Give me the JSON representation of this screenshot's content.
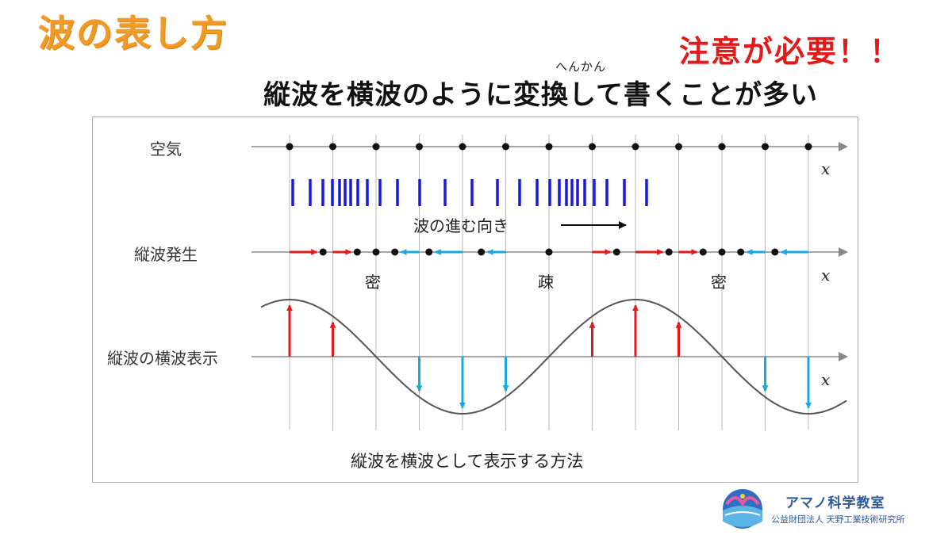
{
  "slide": {
    "title": "波の表し方",
    "warning": "注意が必要！！",
    "furigana": "へんかん",
    "subtitle": "縦波を横波のように変換して書くことが多い"
  },
  "figure": {
    "row_labels": {
      "air": "空気",
      "longitudinal": "縦波発生",
      "transverse_display": "縦波の横波表示"
    },
    "axis_label": "x",
    "direction_label": "波の進む向き",
    "zone_labels": {
      "dense_1": "密",
      "sparse": "疎",
      "dense_2": "密"
    },
    "caption": "縦波を横波として表示する方法",
    "colors": {
      "forward_arrow": "#e41a1a",
      "backward_arrow": "#1aa8e0",
      "bar": "#1a1ad6",
      "highlight_bar": "#e41a1a",
      "gridline": "#b8b8b8",
      "curve": "#555555"
    },
    "particles": 13,
    "displacement": [
      0.9,
      0.6,
      0,
      -0.6,
      -0.9,
      -0.6,
      0,
      0.6,
      0.9,
      0.6,
      0,
      -0.6,
      -0.9
    ]
  },
  "logo": {
    "name": "アマノ科学教室",
    "organization": "公益財団法人 天野工業技術研究所",
    "icon": "amano-logo-icon"
  }
}
